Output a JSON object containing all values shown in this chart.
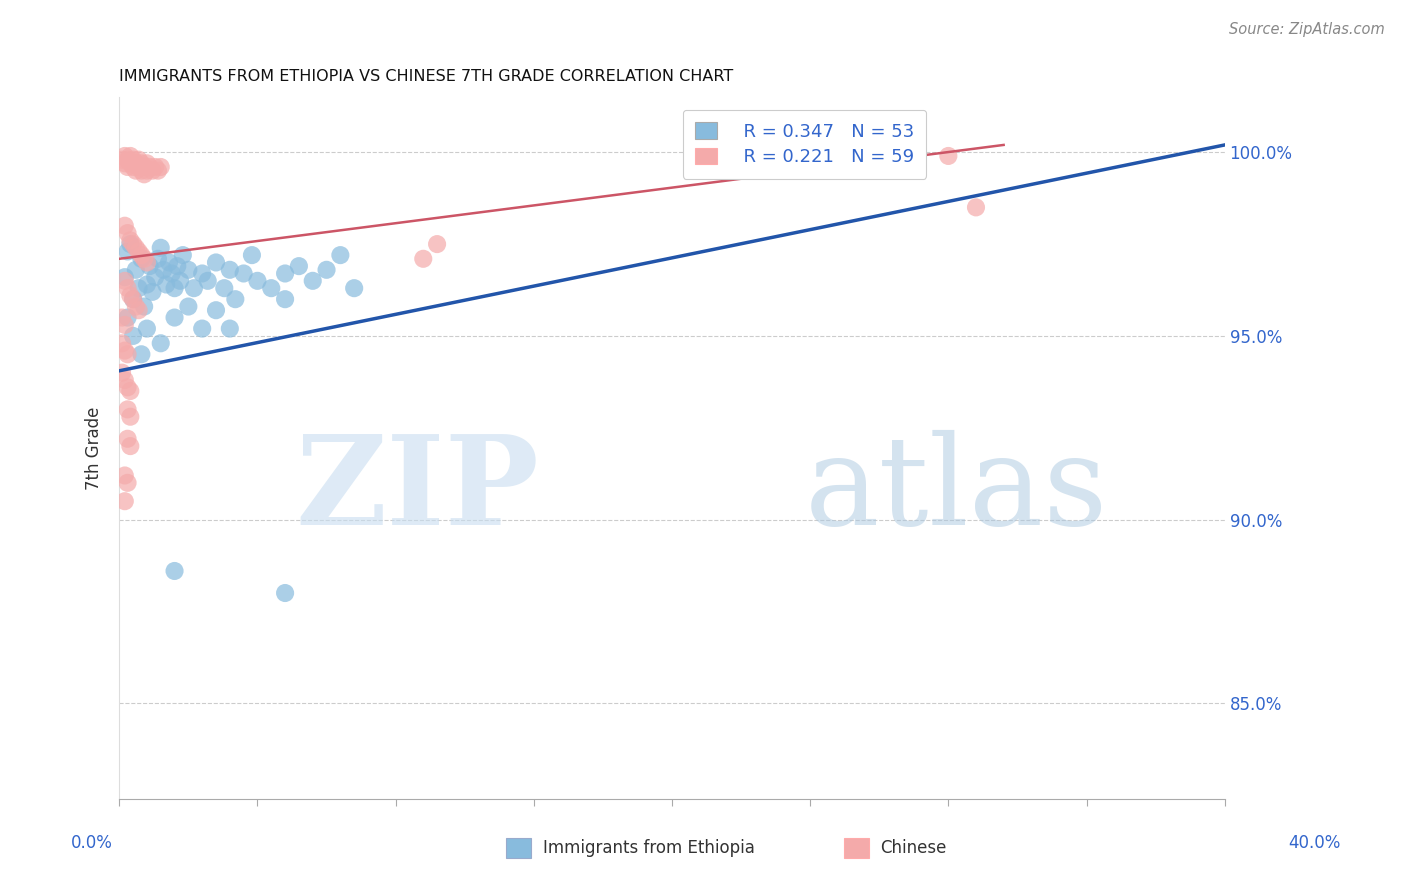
{
  "title": "IMMIGRANTS FROM ETHIOPIA VS CHINESE 7TH GRADE CORRELATION CHART",
  "source": "Source: ZipAtlas.com",
  "ylabel": "7th Grade",
  "y_tick_vals": [
    0.85,
    0.9,
    0.95,
    1.0
  ],
  "y_tick_labels": [
    "85.0%",
    "90.0%",
    "95.0%",
    "100.0%"
  ],
  "x_range": [
    0.0,
    0.4
  ],
  "y_range": [
    0.824,
    1.015
  ],
  "legend_r_blue": "R = 0.347",
  "legend_n_blue": "N = 53",
  "legend_r_pink": "R = 0.221",
  "legend_n_pink": "N = 59",
  "legend_label_blue": "Immigrants from Ethiopia",
  "legend_label_pink": "Chinese",
  "blue_color": "#88bbdd",
  "pink_color": "#f4aaaa",
  "blue_line_color": "#2255aa",
  "pink_line_color": "#cc5566",
  "blue_line_x": [
    0.0,
    0.4
  ],
  "blue_line_y": [
    0.9405,
    1.002
  ],
  "pink_line_x": [
    0.0,
    0.32
  ],
  "pink_line_y": [
    0.971,
    1.002
  ],
  "blue_points": [
    [
      0.002,
      0.966
    ],
    [
      0.003,
      0.973
    ],
    [
      0.004,
      0.975
    ],
    [
      0.005,
      0.96
    ],
    [
      0.006,
      0.968
    ],
    [
      0.007,
      0.963
    ],
    [
      0.008,
      0.971
    ],
    [
      0.009,
      0.958
    ],
    [
      0.01,
      0.964
    ],
    [
      0.011,
      0.969
    ],
    [
      0.012,
      0.962
    ],
    [
      0.013,
      0.966
    ],
    [
      0.014,
      0.971
    ],
    [
      0.015,
      0.974
    ],
    [
      0.016,
      0.968
    ],
    [
      0.017,
      0.964
    ],
    [
      0.018,
      0.97
    ],
    [
      0.019,
      0.967
    ],
    [
      0.02,
      0.963
    ],
    [
      0.021,
      0.969
    ],
    [
      0.022,
      0.965
    ],
    [
      0.023,
      0.972
    ],
    [
      0.025,
      0.968
    ],
    [
      0.027,
      0.963
    ],
    [
      0.03,
      0.967
    ],
    [
      0.032,
      0.965
    ],
    [
      0.035,
      0.97
    ],
    [
      0.038,
      0.963
    ],
    [
      0.04,
      0.968
    ],
    [
      0.042,
      0.96
    ],
    [
      0.045,
      0.967
    ],
    [
      0.048,
      0.972
    ],
    [
      0.05,
      0.965
    ],
    [
      0.055,
      0.963
    ],
    [
      0.06,
      0.967
    ],
    [
      0.065,
      0.969
    ],
    [
      0.07,
      0.965
    ],
    [
      0.075,
      0.968
    ],
    [
      0.08,
      0.972
    ],
    [
      0.085,
      0.963
    ],
    [
      0.003,
      0.955
    ],
    [
      0.005,
      0.95
    ],
    [
      0.008,
      0.945
    ],
    [
      0.01,
      0.952
    ],
    [
      0.015,
      0.948
    ],
    [
      0.02,
      0.955
    ],
    [
      0.025,
      0.958
    ],
    [
      0.03,
      0.952
    ],
    [
      0.035,
      0.957
    ],
    [
      0.04,
      0.952
    ],
    [
      0.06,
      0.96
    ],
    [
      0.02,
      0.886
    ],
    [
      0.06,
      0.88
    ]
  ],
  "pink_points": [
    [
      0.001,
      0.998
    ],
    [
      0.002,
      0.999
    ],
    [
      0.002,
      0.997
    ],
    [
      0.003,
      0.998
    ],
    [
      0.003,
      0.996
    ],
    [
      0.004,
      0.999
    ],
    [
      0.004,
      0.997
    ],
    [
      0.005,
      0.998
    ],
    [
      0.005,
      0.996
    ],
    [
      0.006,
      0.997
    ],
    [
      0.006,
      0.995
    ],
    [
      0.007,
      0.998
    ],
    [
      0.007,
      0.996
    ],
    [
      0.008,
      0.997
    ],
    [
      0.008,
      0.995
    ],
    [
      0.009,
      0.996
    ],
    [
      0.009,
      0.994
    ],
    [
      0.01,
      0.997
    ],
    [
      0.01,
      0.995
    ],
    [
      0.011,
      0.996
    ],
    [
      0.012,
      0.995
    ],
    [
      0.013,
      0.996
    ],
    [
      0.014,
      0.995
    ],
    [
      0.015,
      0.996
    ],
    [
      0.002,
      0.98
    ],
    [
      0.003,
      0.978
    ],
    [
      0.004,
      0.976
    ],
    [
      0.005,
      0.975
    ],
    [
      0.006,
      0.974
    ],
    [
      0.007,
      0.973
    ],
    [
      0.008,
      0.972
    ],
    [
      0.009,
      0.971
    ],
    [
      0.01,
      0.97
    ],
    [
      0.002,
      0.965
    ],
    [
      0.003,
      0.963
    ],
    [
      0.004,
      0.961
    ],
    [
      0.005,
      0.96
    ],
    [
      0.006,
      0.958
    ],
    [
      0.007,
      0.957
    ],
    [
      0.001,
      0.955
    ],
    [
      0.002,
      0.953
    ],
    [
      0.001,
      0.948
    ],
    [
      0.002,
      0.946
    ],
    [
      0.003,
      0.945
    ],
    [
      0.001,
      0.94
    ],
    [
      0.002,
      0.938
    ],
    [
      0.003,
      0.936
    ],
    [
      0.004,
      0.935
    ],
    [
      0.11,
      0.971
    ],
    [
      0.115,
      0.975
    ],
    [
      0.3,
      0.999
    ],
    [
      0.31,
      0.985
    ],
    [
      0.003,
      0.93
    ],
    [
      0.004,
      0.928
    ],
    [
      0.003,
      0.922
    ],
    [
      0.004,
      0.92
    ],
    [
      0.002,
      0.912
    ],
    [
      0.003,
      0.91
    ],
    [
      0.002,
      0.905
    ]
  ]
}
